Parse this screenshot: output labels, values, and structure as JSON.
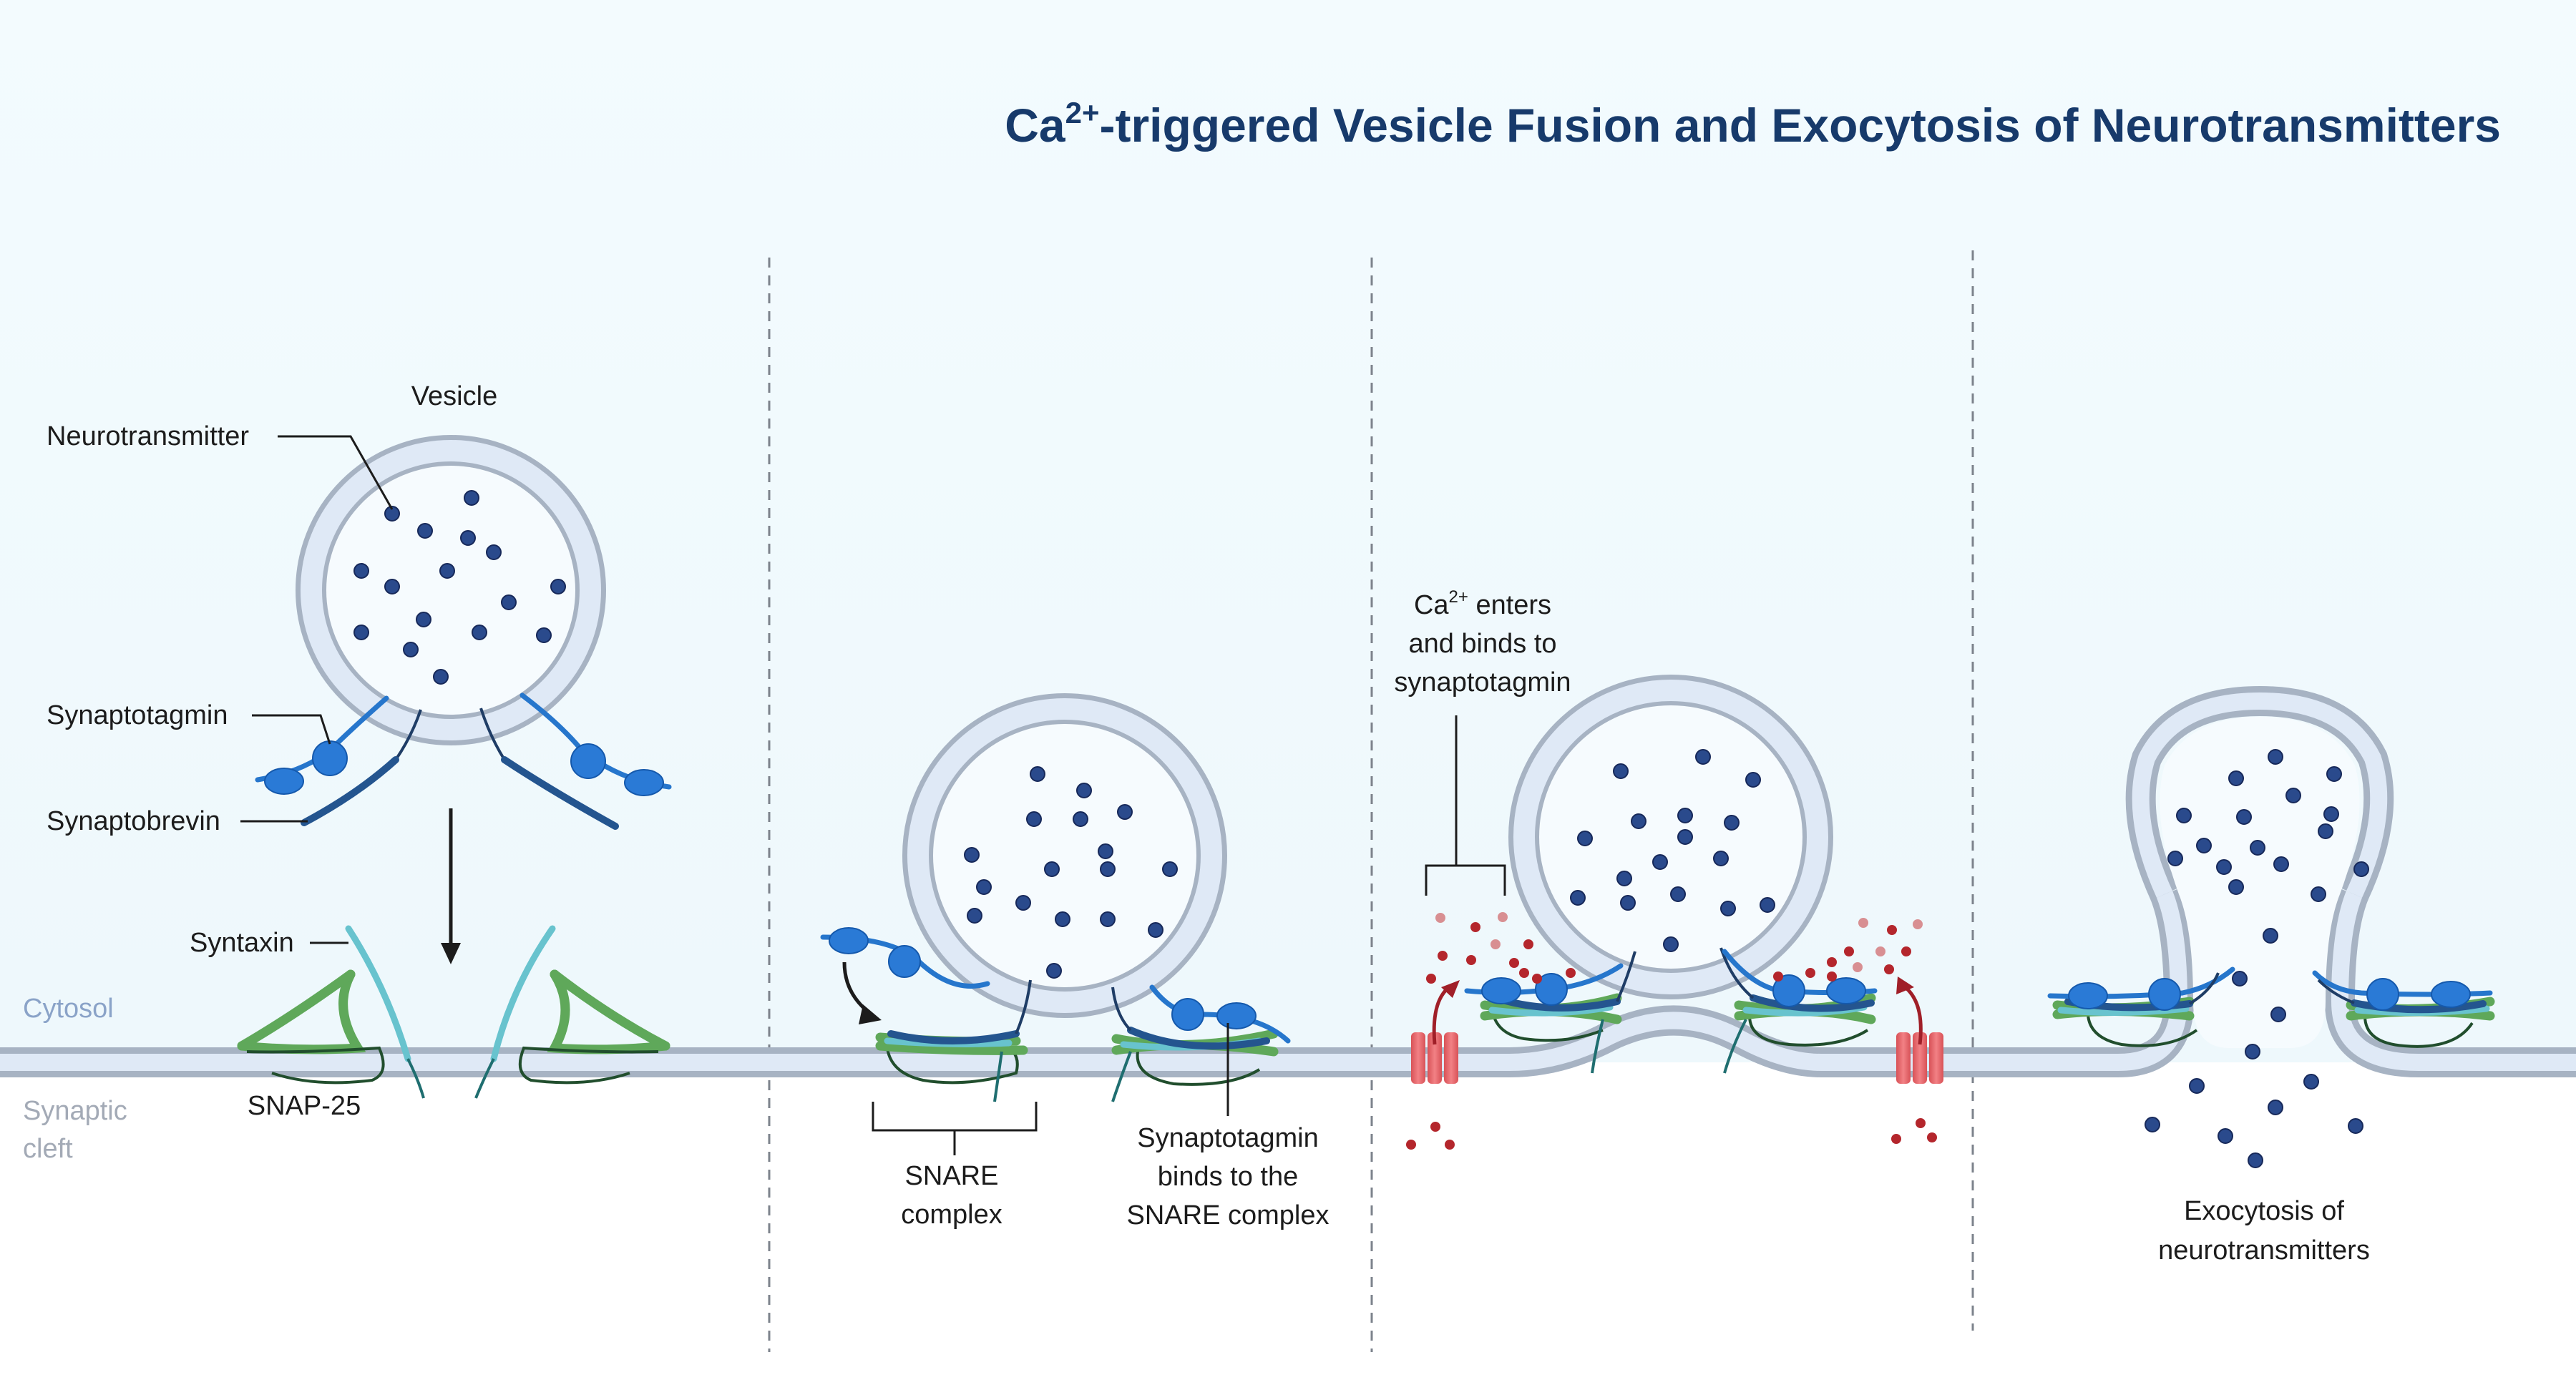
{
  "title": {
    "prefix": "Ca",
    "superscript": "2+",
    "rest": "-triggered Vesicle Fusion and Exocytosis of Neurotransmitters"
  },
  "regions": {
    "cytosol": "Cytosol",
    "cleft_line1": "Synaptic",
    "cleft_line2": "cleft"
  },
  "panel1": {
    "vesicle": "Vesicle",
    "neurotransmitter": "Neurotransmitter",
    "synaptotagmin": "Synaptotagmin",
    "synaptobrevin": "Synaptobrevin",
    "syntaxin": "Syntaxin",
    "snap25": "SNAP-25"
  },
  "panel2": {
    "snare_line1": "SNARE",
    "snare_line2": "complex",
    "bind_line1": "Synaptotagmin",
    "bind_line2": "binds to the",
    "bind_line3": "SNARE complex"
  },
  "panel3": {
    "ca_prefix": "Ca",
    "ca_superscript": "2+",
    "ca_rest": " enters",
    "line2": "and binds to",
    "line3": "synaptotagmin"
  },
  "panel4": {
    "line1": "Exocytosis of",
    "line2": "neurotransmitters"
  },
  "colors": {
    "cytosol_bg": "#f1fafd",
    "membrane": "#a7b3c3",
    "neurotransmitter": "#2a4a8c",
    "synaptotagmin": "#2a7ad6",
    "synaptobrevin": "#24558f",
    "syntaxin": "#68c3ce",
    "snap25": "#5fa85a",
    "calcium": "#b4262c",
    "channel": "#e86a6e",
    "title": "#173a6b"
  }
}
